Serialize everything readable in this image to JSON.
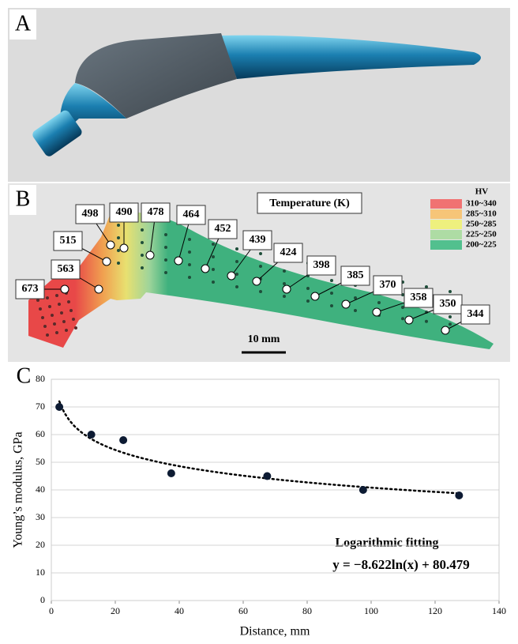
{
  "panels": {
    "a": {
      "label": "A"
    },
    "b": {
      "label": "B",
      "title": "Temperature (K)",
      "scale_bar": "10 mm",
      "legend": {
        "title": "HV",
        "items": [
          {
            "label": "310~340",
            "color": "#f07272"
          },
          {
            "label": "285~310",
            "color": "#f6c578"
          },
          {
            "label": "250~285",
            "color": "#eef07e"
          },
          {
            "label": "225~250",
            "color": "#aedca4"
          },
          {
            "label": "200~225",
            "color": "#52c08e"
          }
        ]
      },
      "points": [
        673,
        563,
        515,
        498,
        490,
        478,
        464,
        452,
        439,
        424,
        398,
        385,
        370,
        358,
        350,
        344
      ]
    }
  },
  "chart_data": {
    "type": "scatter",
    "label": "C",
    "x_label": "Distance, mm",
    "y_label": "Young’s modulus, GPa",
    "annotations": [
      "Logarithmic fitting",
      "y = −8.622ln(x) + 80.479"
    ],
    "x": [
      2.5,
      12.5,
      22.5,
      37.5,
      67.5,
      97.5,
      127.5
    ],
    "values": [
      70,
      60,
      58,
      46,
      45,
      40,
      38
    ],
    "color": "#0d1b33",
    "trendline": "logarithmic",
    "xlim": [
      0,
      140
    ],
    "xticks": [
      0,
      20,
      40,
      60,
      80,
      100,
      120,
      140
    ],
    "ylim": [
      0,
      80
    ],
    "yticks": [
      0,
      10,
      20,
      30,
      40,
      50,
      60,
      70,
      80
    ],
    "grid": true
  }
}
